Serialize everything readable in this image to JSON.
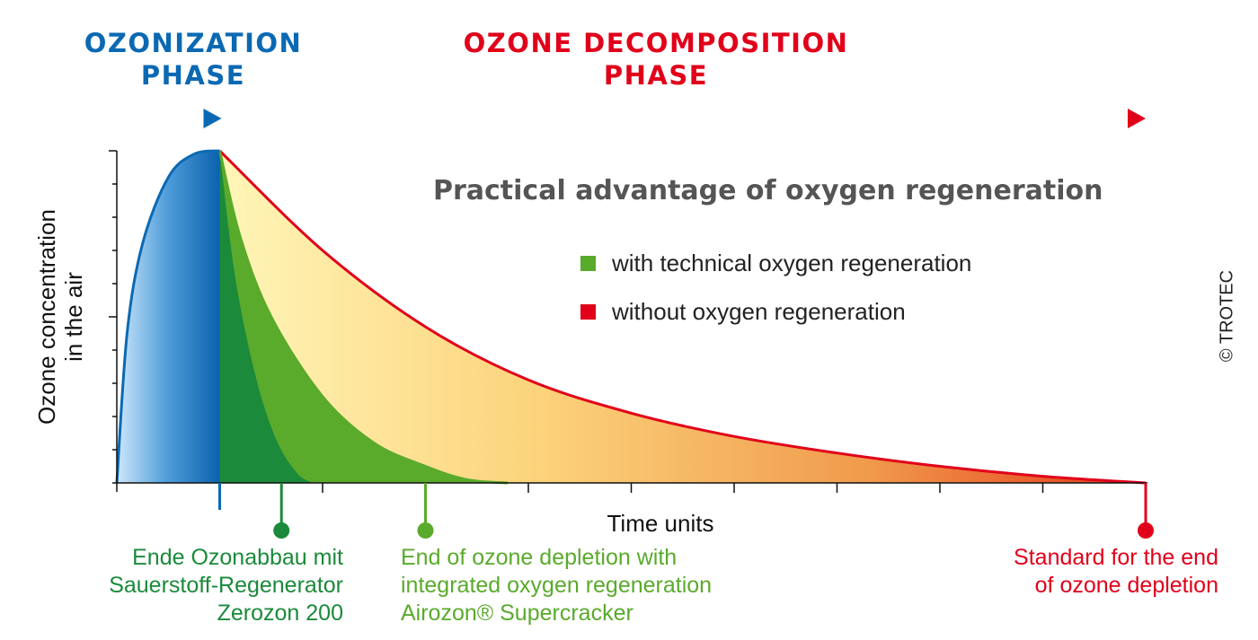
{
  "phases": {
    "ozonization": {
      "line1": "OZONIZATION",
      "line2": "PHASE",
      "color": "#0b69b3"
    },
    "decomposition": {
      "line1": "OZONE DECOMPOSITION",
      "line2": "PHASE",
      "color": "#e1001a"
    }
  },
  "copyright": "© TROTEC",
  "chart_data": {
    "type": "area",
    "title": "Practical advantage of oxygen regeneration",
    "xlabel": "Time units",
    "ylabel": [
      "Ozone concentration",
      "in the air"
    ],
    "xlim": [
      0,
      10
    ],
    "ylim": [
      0,
      1
    ],
    "grid": false,
    "legend_position": "top-right",
    "series": [
      {
        "name": "with technical oxygen regeneration",
        "color": "#5aaa2c",
        "x": [
          1.0,
          1.2,
          1.5,
          2.0,
          2.5,
          3.0,
          3.4,
          3.8
        ],
        "y": [
          1.0,
          0.74,
          0.5,
          0.26,
          0.12,
          0.05,
          0.01,
          0.0
        ]
      },
      {
        "name": "without oxygen regeneration",
        "color": "#e1001a",
        "x": [
          1.0,
          2.0,
          3.0,
          4.0,
          5.0,
          6.0,
          7.0,
          8.0,
          9.0,
          10.0
        ],
        "y": [
          1.0,
          0.7,
          0.47,
          0.31,
          0.21,
          0.14,
          0.09,
          0.05,
          0.02,
          0.0
        ]
      }
    ],
    "ozonization_curve": {
      "color": "#0b69b3",
      "x": [
        0.0,
        0.1,
        0.25,
        0.5,
        0.75,
        1.0
      ],
      "y": [
        0.0,
        0.45,
        0.72,
        0.92,
        0.99,
        1.0
      ]
    },
    "fast_decay_curve": {
      "color": "#1b8a3a",
      "x": [
        1.0,
        1.15,
        1.35,
        1.55,
        1.75,
        1.9
      ],
      "y": [
        1.0,
        0.62,
        0.32,
        0.13,
        0.03,
        0.0
      ]
    },
    "markers": [
      {
        "x": 1.0,
        "color": "#0b69b3"
      },
      {
        "x": 1.6,
        "color": "#1b8a3a",
        "label": [
          "Ende Ozonabbau mit",
          "Sauerstoff-Regenerator",
          "Zerozon 200"
        ]
      },
      {
        "x": 3.0,
        "color": "#5aaa2c",
        "label": [
          "End of ozone depletion with",
          "integrated oxygen regeneration",
          "Airozon® Supercracker"
        ]
      },
      {
        "x": 10.0,
        "color": "#e1001a",
        "label": [
          "Standard for the end",
          "of ozone depletion"
        ]
      }
    ]
  }
}
